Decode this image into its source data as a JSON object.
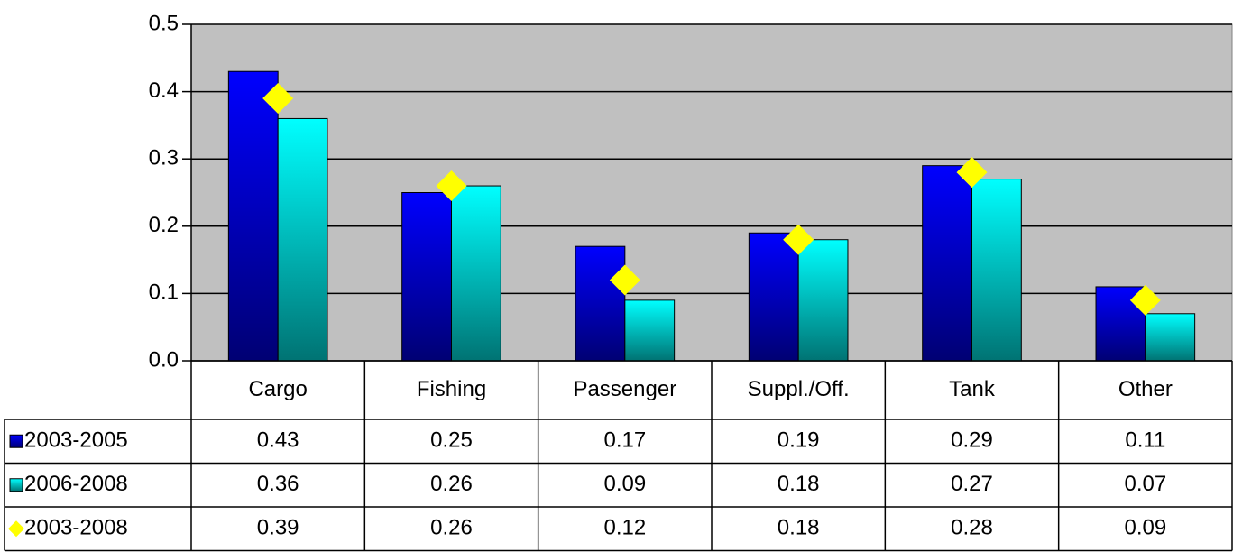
{
  "chart_data": {
    "type": "bar",
    "categories": [
      "Cargo",
      "Fishing",
      "Passenger",
      "Suppl./Off.",
      "Tank",
      "Other"
    ],
    "series": [
      {
        "name": "2003-2005",
        "type": "bar",
        "color": "#0000ff",
        "values": [
          0.43,
          0.25,
          0.17,
          0.19,
          0.29,
          0.11
        ]
      },
      {
        "name": "2006-2008",
        "type": "bar",
        "color": "#00ffff",
        "values": [
          0.36,
          0.26,
          0.09,
          0.18,
          0.27,
          0.07
        ]
      },
      {
        "name": "2003-2008",
        "type": "scatter",
        "marker": "diamond",
        "color": "#ffff00",
        "values": [
          0.39,
          0.26,
          0.12,
          0.18,
          0.28,
          0.09
        ]
      }
    ],
    "ylim": [
      0,
      0.5
    ],
    "yticks": [
      {
        "value": 0,
        "label": "0.0"
      },
      0.1,
      0.2,
      0.3,
      0.4,
      0.5
    ],
    "grid": true,
    "plot_background": "#c0c0c0",
    "data_table": true
  }
}
